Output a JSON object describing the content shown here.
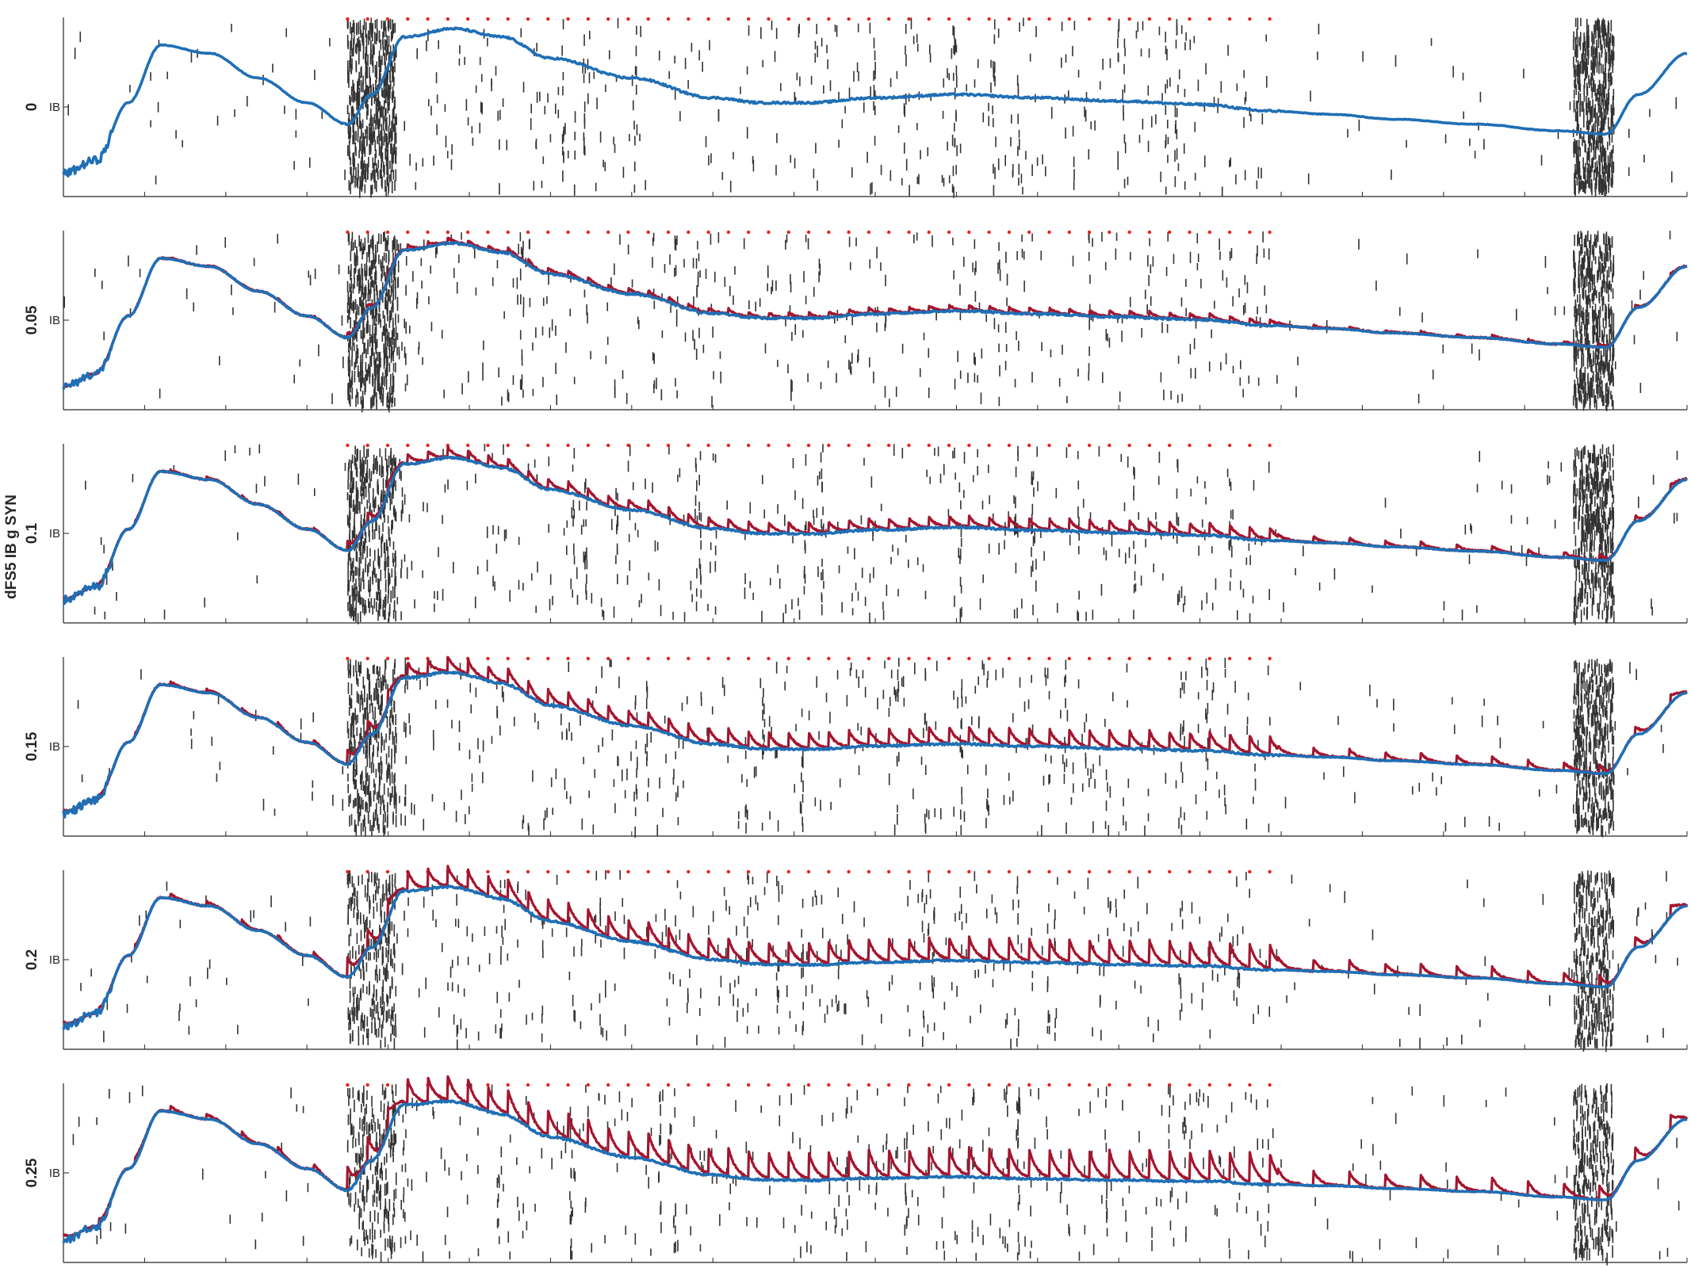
{
  "chart_data": {
    "type": "line",
    "ylabel": "dFS5 IB g SYN",
    "ytick_label": "IB",
    "grid": false,
    "colors": {
      "baseline_trace": "#1f6fb5",
      "modulated_trace": "#a3162f",
      "stimulus_markers": "#e8231e",
      "spike_raster": "#333333"
    },
    "x_range": [
      0,
      1
    ],
    "stimulus_window": [
      0.175,
      0.743
    ],
    "stimulus_count": 47,
    "rows": [
      {
        "label": "0",
        "gain": 0.0
      },
      {
        "label": "0.05",
        "gain": 0.05
      },
      {
        "label": "0.1",
        "gain": 0.1
      },
      {
        "label": "0.15",
        "gain": 0.15
      },
      {
        "label": "0.2",
        "gain": 0.2
      },
      {
        "label": "0.25",
        "gain": 0.25
      }
    ],
    "series": [
      {
        "x": [
          0,
          0.02,
          0.04,
          0.06,
          0.09,
          0.12,
          0.15,
          0.175,
          0.19,
          0.21,
          0.24,
          0.27,
          0.3,
          0.35,
          0.4,
          0.43,
          0.46,
          0.5,
          0.55,
          0.6,
          0.65,
          0.7,
          0.743,
          0.78,
          0.82,
          0.87,
          0.92,
          0.95,
          0.97,
          1.0
        ],
        "ybase": [
          0.12,
          0.2,
          0.55,
          0.9,
          0.85,
          0.7,
          0.55,
          0.42,
          0.6,
          0.95,
          1.0,
          0.95,
          0.82,
          0.7,
          0.58,
          0.55,
          0.55,
          0.58,
          0.6,
          0.58,
          0.56,
          0.54,
          0.5,
          0.48,
          0.45,
          0.42,
          0.38,
          0.36,
          0.6,
          0.85
        ]
      }
    ]
  }
}
